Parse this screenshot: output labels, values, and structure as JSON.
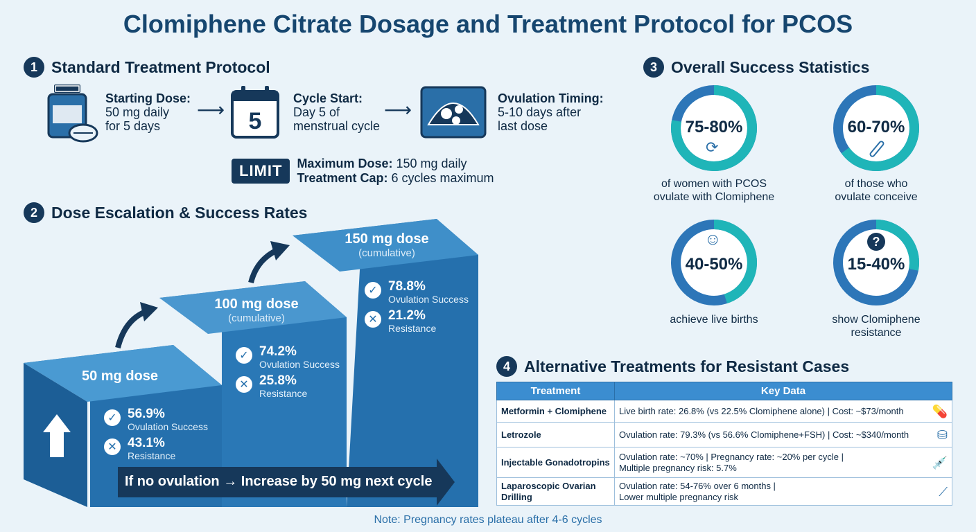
{
  "title": "Clomiphene Citrate Dosage and Treatment Protocol for PCOS",
  "section1": {
    "number": "1",
    "heading": "Standard Treatment Protocol",
    "starting": {
      "label": "Starting Dose:",
      "line1": "50 mg daily",
      "line2": "for 5 days"
    },
    "cycle": {
      "label": "Cycle Start:",
      "line1": "Day 5 of",
      "line2": "menstrual cycle",
      "calendar_num": "5"
    },
    "ovulation": {
      "label": "Ovulation Timing:",
      "line1": "5-10 days after",
      "line2": "last dose"
    },
    "limit": {
      "badge": "LIMIT",
      "max_label": "Maximum Dose:",
      "max_value": "150 mg daily",
      "cap_label": "Treatment Cap:",
      "cap_value": "6 cycles maximum"
    }
  },
  "section2": {
    "number": "2",
    "heading": "Dose Escalation & Success Rates",
    "steps": [
      {
        "dose": "50 mg dose",
        "sub": "",
        "success": "56.9%",
        "success_label": "Ovulation Success",
        "resist": "43.1%",
        "resist_label": "Resistance"
      },
      {
        "dose": "100 mg dose",
        "sub": "(cumulative)",
        "success": "74.2%",
        "success_label": "Ovulation Success",
        "resist": "25.8%",
        "resist_label": "Resistance"
      },
      {
        "dose": "150 mg dose",
        "sub": "(cumulative)",
        "success": "78.8%",
        "success_label": "Ovulation Success",
        "resist": "21.2%",
        "resist_label": "Resistance"
      }
    ],
    "banner": "If no ovulation → Increase by 50 mg next cycle"
  },
  "section3": {
    "number": "3",
    "heading": "Overall Success Statistics",
    "stats": [
      {
        "value": "75-80%",
        "fraction": 0.78,
        "line1": "of women with PCOS",
        "line2": "ovulate with Clomiphene",
        "icon": "cycle-icon"
      },
      {
        "value": "60-70%",
        "fraction": 0.65,
        "line1": "of those who",
        "line2": "ovulate conceive",
        "icon": "pregnancy-test-icon"
      },
      {
        "value": "40-50%",
        "fraction": 0.45,
        "line1": "achieve live births",
        "line2": "",
        "icon": "baby-icon"
      },
      {
        "value": "15-40%",
        "fraction": 0.28,
        "line1": "show Clomiphene",
        "line2": "resistance",
        "icon": "question-icon"
      }
    ]
  },
  "section4": {
    "number": "4",
    "heading": "Alternative Treatments for Resistant Cases",
    "col_treatment": "Treatment",
    "col_data": "Key Data",
    "rows": [
      {
        "name": "Metformin + Clomiphene",
        "data1": "Live birth rate: 26.8% (vs 22.5% Clomiphene alone) | Cost: ~$73/month",
        "data2": "",
        "icon": "pills-icon"
      },
      {
        "name": "Letrozole",
        "data1": "Ovulation rate: 79.3% (vs 56.6% Clomiphene+FSH) | Cost: ~$340/month",
        "data2": "",
        "icon": "coins-icon"
      },
      {
        "name": "Injectable Gonadotropins",
        "data1": "Ovulation rate: ~70% | Pregnancy rate: ~20% per cycle |",
        "data2": "Multiple pregnancy risk: 5.7%",
        "icon": "syringe-icon"
      },
      {
        "name": "Laparoscopic Ovarian Drilling",
        "data1": "Ovulation rate: 54-76% over 6 months |",
        "data2": "Lower multiple pregnancy risk",
        "icon": "laparoscope-icon"
      }
    ]
  },
  "note": "Note: Pregnancy rates plateau after 4-6 cycles",
  "colors": {
    "accent": "#2570ad",
    "teal": "#1fb5b8",
    "dark": "#16385a"
  }
}
